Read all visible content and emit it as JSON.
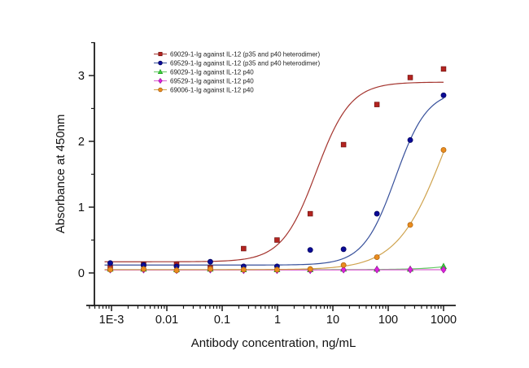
{
  "figure": {
    "background": "#ffffff",
    "axis_color": "#1a1a1a",
    "text_color": "#111111",
    "x_axis": {
      "title": "Antibody concentration,  ng/mL",
      "scale": "log",
      "tick_labels": [
        "1E-3",
        "0.01",
        "0.1",
        "1",
        "10",
        "100",
        "1000"
      ],
      "tick_values": [
        0.001,
        0.01,
        0.1,
        1,
        10,
        100,
        1000
      ]
    },
    "y_axis": {
      "title": "Absorbance at 450nm",
      "tick_labels": [
        "0",
        "1",
        "2",
        "3"
      ],
      "tick_values": [
        0,
        1,
        2,
        3
      ],
      "range": [
        -0.5,
        3.5
      ],
      "minor_step": 0.5
    },
    "legend_position": "top-center"
  },
  "chart_data": {
    "type": "scatter",
    "title": "",
    "xlabel": "Antibody concentration,  ng/mL",
    "ylabel": "Absorbance at 450nm",
    "x_scale": "log",
    "xlim": [
      0.00035,
      1660
    ],
    "ylim": [
      -0.5,
      3.5
    ],
    "grid": false,
    "legend_position": "top-center",
    "x": [
      0.00095,
      0.0038,
      0.015,
      0.061,
      0.244,
      0.98,
      3.9,
      15.6,
      62.5,
      250,
      1000
    ],
    "series": [
      {
        "name": "69029-1-Ig against  IL-12 (p35 and p40 heterodimer)",
        "marker": "square",
        "marker_color": "#b42420",
        "edge_color": "#701210",
        "line_color": "#a4342e",
        "values": [
          0.08,
          0.13,
          0.13,
          0.08,
          0.37,
          0.5,
          0.9,
          1.95,
          2.56,
          2.97,
          3.1
        ],
        "fit": {
          "model": "4PL",
          "bottom": 0.17,
          "top": 2.9,
          "ec50": 5.0,
          "hill": 1.4
        }
      },
      {
        "name": "69529-1-Ig against  IL-12 (p35 and p40 heterodimer)",
        "marker": "circle",
        "marker_color": "#0a0a96",
        "edge_color": "#04045a",
        "line_color": "#37509b",
        "values": [
          0.15,
          0.12,
          0.1,
          0.17,
          0.1,
          0.1,
          0.35,
          0.36,
          0.9,
          2.02,
          2.7
        ],
        "fit": {
          "model": "4PL",
          "bottom": 0.12,
          "top": 2.78,
          "ec50": 135,
          "hill": 1.5
        }
      },
      {
        "name": "69029-1-Ig against  IL-12 p40",
        "marker": "triangle",
        "marker_color": "#3ccf3c",
        "edge_color": "#1f9e1f",
        "line_color": "#62c962",
        "values": [
          0.06,
          0.06,
          0.05,
          0.06,
          0.05,
          0.05,
          0.05,
          0.06,
          0.06,
          0.06,
          0.1
        ],
        "fit": {
          "model": "4PL",
          "bottom": 0.05,
          "top": 1.0,
          "ec50": 20000,
          "hill": 1.0
        }
      },
      {
        "name": "69529-1-Ig against  IL-12 p40",
        "marker": "diamond",
        "marker_color": "#dd22dd",
        "edge_color": "#a012a0",
        "line_color": "#d95fd0",
        "values": [
          0.05,
          0.05,
          0.04,
          0.05,
          0.04,
          0.04,
          0.04,
          0.05,
          0.05,
          0.05,
          0.05
        ],
        "fit": {
          "model": "4PL",
          "bottom": 0.045,
          "top": 0.05,
          "ec50": 100,
          "hill": 1.0
        }
      },
      {
        "name": "69006-1-Ig against  IL-12 p40",
        "marker": "circle",
        "marker_color": "#ea8c1e",
        "edge_color": "#a85e0c",
        "line_color": "#cfa34e",
        "values": [
          0.05,
          0.06,
          0.04,
          0.06,
          0.05,
          0.05,
          0.06,
          0.12,
          0.24,
          0.73,
          1.87
        ],
        "fit": {
          "model": "4PL",
          "bottom": 0.05,
          "top": 3.8,
          "ec50": 1100,
          "hill": 1.0
        }
      }
    ]
  }
}
